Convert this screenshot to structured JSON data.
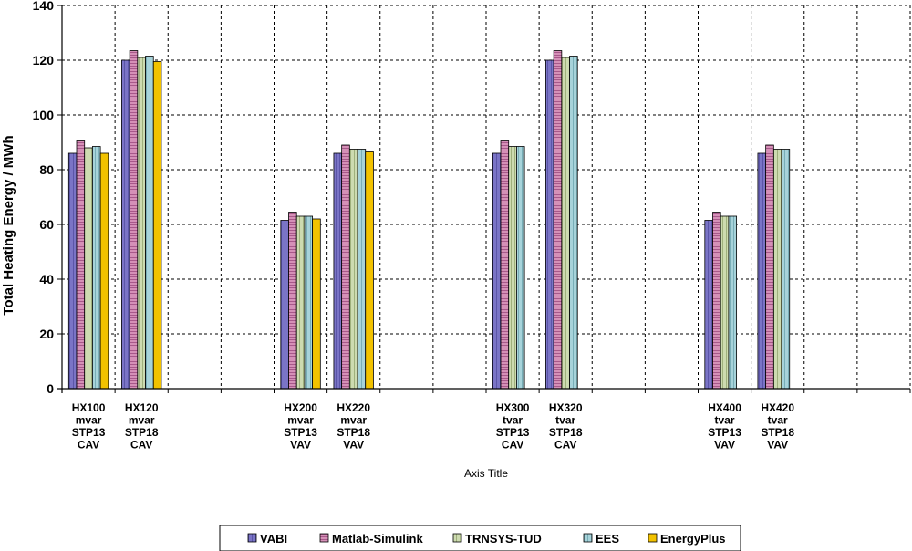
{
  "chart_data": {
    "type": "bar",
    "ylabel": "Total Heating Energy / MWh",
    "xlabel": "Axis Title",
    "ylim": [
      0,
      140
    ],
    "yticks": [
      0,
      20,
      40,
      60,
      80,
      100,
      120,
      140
    ],
    "grid": true,
    "legend_position": "bottom",
    "categories": [
      [
        "HX100",
        "mvar",
        "STP13",
        "CAV"
      ],
      [
        "HX120",
        "mvar",
        "STP18",
        "CAV"
      ],
      [
        "",
        "",
        "",
        ""
      ],
      [
        "",
        "",
        "",
        ""
      ],
      [
        "HX200",
        "mvar",
        "STP13",
        "VAV"
      ],
      [
        "HX220",
        "mvar",
        "STP18",
        "VAV"
      ],
      [
        "",
        "",
        "",
        ""
      ],
      [
        "",
        "",
        "",
        ""
      ],
      [
        "HX300",
        "tvar",
        "STP13",
        "CAV"
      ],
      [
        "HX320",
        "tvar",
        "STP18",
        "CAV"
      ],
      [
        "",
        "",
        "",
        ""
      ],
      [
        "",
        "",
        "",
        ""
      ],
      [
        "HX400",
        "tvar",
        "STP13",
        "VAV"
      ],
      [
        "HX420",
        "tvar",
        "STP18",
        "VAV"
      ],
      [
        "",
        "",
        "",
        ""
      ],
      [
        "",
        "",
        "",
        ""
      ]
    ],
    "series": [
      {
        "name": "VABI",
        "color": "#7a74c6",
        "values": [
          86,
          120,
          null,
          null,
          61.5,
          86,
          null,
          null,
          86,
          120,
          null,
          null,
          61.5,
          86,
          null,
          null
        ]
      },
      {
        "name": "Matlab-Simulink",
        "color": "#cc7ca8",
        "values": [
          90.5,
          123.5,
          null,
          null,
          64.5,
          89,
          null,
          null,
          90.5,
          123.5,
          null,
          null,
          64.5,
          89,
          null,
          null
        ]
      },
      {
        "name": "TRNSYS-TUD",
        "color": "#c7d6a6",
        "values": [
          88,
          121,
          null,
          null,
          63,
          87.5,
          null,
          null,
          88.5,
          121,
          null,
          null,
          63,
          87.5,
          null,
          null
        ]
      },
      {
        "name": "EES",
        "color": "#9fcdd4",
        "values": [
          88.5,
          121.5,
          null,
          null,
          63,
          87.5,
          null,
          null,
          88.5,
          121.5,
          null,
          null,
          63,
          87.5,
          null,
          null
        ]
      },
      {
        "name": "EnergyPlus",
        "color": "#f0c000",
        "values": [
          86,
          119.5,
          null,
          null,
          62,
          86.5,
          null,
          null,
          null,
          null,
          null,
          null,
          null,
          null,
          null,
          null
        ]
      }
    ]
  }
}
